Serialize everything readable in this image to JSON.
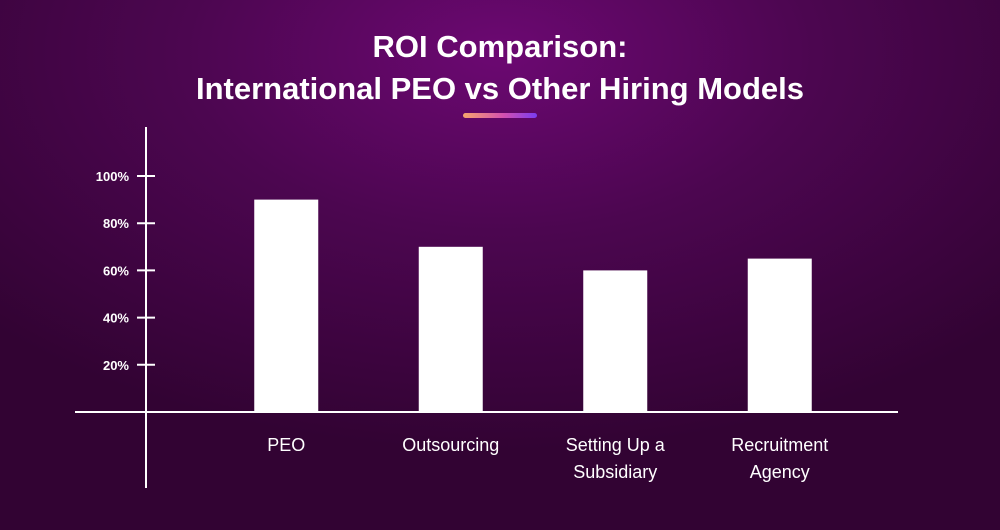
{
  "title_lines": [
    "ROI Comparison:",
    "International PEO vs Other Hiring Models"
  ],
  "colors": {
    "bar": "#ffffff",
    "axis": "#ffffff",
    "accent_start": "#f6a66d",
    "accent_end": "#7a3cf0"
  },
  "chart_data": {
    "type": "bar",
    "title": "ROI Comparison: International PEO vs Other Hiring Models",
    "categories": [
      [
        "PEO"
      ],
      [
        "Outsourcing"
      ],
      [
        "Setting Up a",
        "Subsidiary"
      ],
      [
        "Recruitment",
        "Agency"
      ]
    ],
    "values": [
      90,
      70,
      60,
      65
    ],
    "yticks": [
      20,
      40,
      60,
      80,
      100
    ],
    "ytick_labels": [
      "20%",
      "40%",
      "60%",
      "80%",
      "100%"
    ],
    "ylim": [
      0,
      100
    ],
    "xlabel": "",
    "ylabel": "",
    "grid": false,
    "legend": "none"
  }
}
